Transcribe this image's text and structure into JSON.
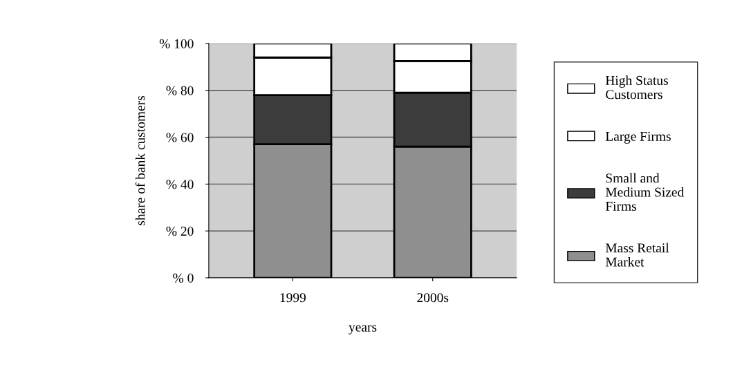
{
  "chart_data": {
    "type": "bar",
    "stacked": true,
    "xlabel": "years",
    "ylabel": "share of bank customers",
    "categories": [
      "1999",
      "2000s"
    ],
    "series": [
      {
        "name": "Mass Retail Market",
        "color": "#8f8f8f",
        "values": [
          57,
          56
        ]
      },
      {
        "name": "Small and Medium Sized Firms",
        "color": "#3c3c3c",
        "values": [
          21,
          23
        ]
      },
      {
        "name": "Large Firms",
        "color": "#ffffff",
        "values": [
          16,
          13.5
        ]
      },
      {
        "name": "High Status Customers",
        "color": "#ffffff",
        "values": [
          6,
          7.5
        ]
      }
    ],
    "ylim": [
      0,
      100
    ],
    "yticks": [
      {
        "value": 0,
        "label": "% 0"
      },
      {
        "value": 20,
        "label": "% 20"
      },
      {
        "value": 40,
        "label": "% 40"
      },
      {
        "value": 60,
        "label": "% 60"
      },
      {
        "value": 80,
        "label": "% 80"
      },
      {
        "value": 100,
        "label": "% 100"
      }
    ],
    "grid": "y",
    "legend": "right"
  }
}
